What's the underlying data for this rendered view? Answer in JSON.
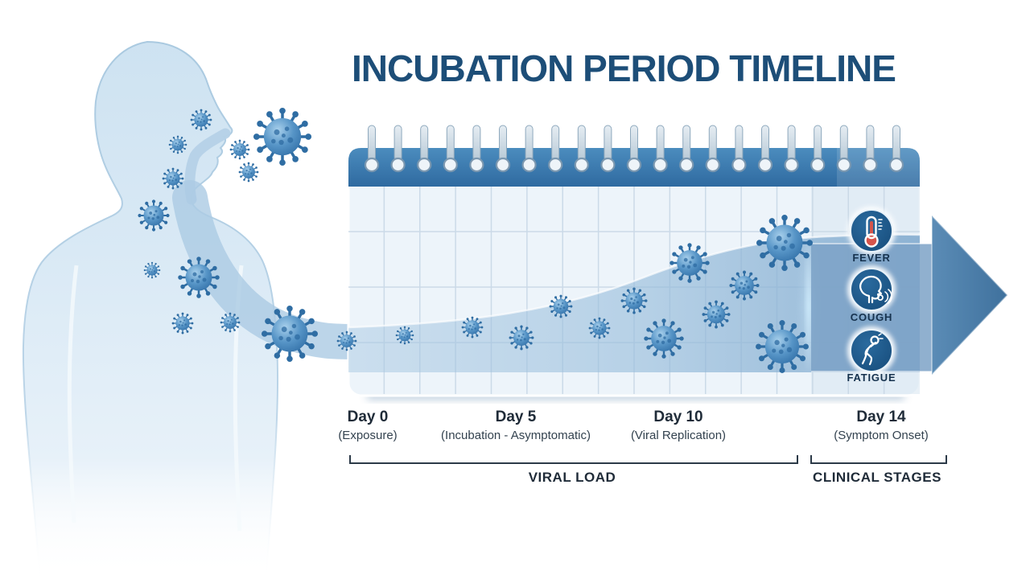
{
  "title": "INCUBATION PERIOD TIMELINE",
  "timeline": {
    "day_markers": [
      {
        "day": "Day 0",
        "sublabel": "(Exposure)"
      },
      {
        "day": "Day 5",
        "sublabel": "(Incubation - Asymptomatic)"
      },
      {
        "day": "Day 10",
        "sublabel": "(Viral Replication)"
      },
      {
        "day": "Day 14",
        "sublabel": "(Symptom Onset)"
      }
    ],
    "phases": [
      {
        "label": "VIRAL LOAD"
      },
      {
        "label": "CLINICAL STAGES"
      }
    ]
  },
  "symptoms": [
    {
      "label": "FEVER",
      "icon": "thermometer-icon"
    },
    {
      "label": "COUGH",
      "icon": "coughing-person-icon"
    },
    {
      "label": "FATIGUE",
      "icon": "fatigued-person-icon"
    }
  ],
  "colors": {
    "title_text": "#1d4e78",
    "calendar_header": "#3c78ad",
    "calendar_body": "#edf4fa",
    "grid_line": "#c6d6e5",
    "viral_wave": "#8fb6d8",
    "arrow": "#4c7ea9",
    "icon_circle": "#1e5584",
    "fever_red": "#d5544b",
    "virus_blue": "#4a86bb",
    "body_silhouette": "#d6e8f5",
    "label_text": "#1f2b38"
  }
}
